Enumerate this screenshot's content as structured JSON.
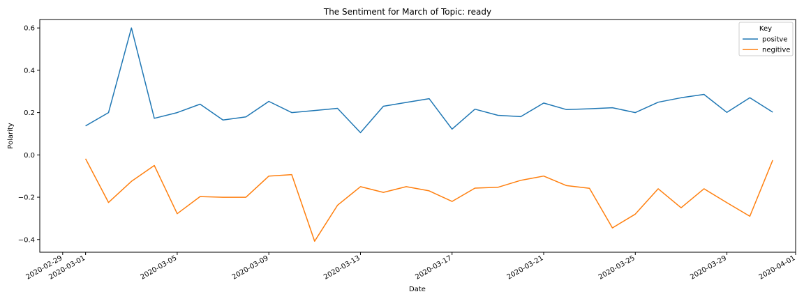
{
  "chart_data": {
    "type": "line",
    "title": "The Sentiment for March of Topic: ready",
    "xlabel": "Date",
    "ylabel": "Polarity",
    "x": [
      "2020-03-01",
      "2020-03-02",
      "2020-03-03",
      "2020-03-04",
      "2020-03-05",
      "2020-03-06",
      "2020-03-07",
      "2020-03-08",
      "2020-03-09",
      "2020-03-10",
      "2020-03-11",
      "2020-03-12",
      "2020-03-13",
      "2020-03-14",
      "2020-03-15",
      "2020-03-16",
      "2020-03-17",
      "2020-03-18",
      "2020-03-19",
      "2020-03-20",
      "2020-03-21",
      "2020-03-22",
      "2020-03-23",
      "2020-03-24",
      "2020-03-25",
      "2020-03-26",
      "2020-03-27",
      "2020-03-28",
      "2020-03-29",
      "2020-03-30",
      "2020-03-31"
    ],
    "xlim": [
      "2020-02-28",
      "2020-04-01"
    ],
    "xticks": [
      "2020-02-29",
      "2020-03-01",
      "2020-03-05",
      "2020-03-09",
      "2020-03-13",
      "2020-03-17",
      "2020-03-21",
      "2020-03-25",
      "2020-03-29",
      "2020-04-01"
    ],
    "ylim": [
      -0.46,
      0.64
    ],
    "yticks": [
      -0.4,
      -0.2,
      0.0,
      0.2,
      0.4,
      0.6
    ],
    "ytick_labels": [
      "−0.4",
      "−0.2",
      "0.0",
      "0.2",
      "0.4",
      "0.6"
    ],
    "grid": false,
    "legend": {
      "title": "Key",
      "position": "top-right"
    },
    "series": [
      {
        "name": "positve",
        "color": "#1f77b4",
        "values": [
          0.137,
          0.2,
          0.6,
          0.173,
          0.2,
          0.24,
          0.165,
          0.18,
          0.253,
          0.2,
          0.21,
          0.22,
          0.105,
          0.23,
          0.248,
          0.266,
          0.122,
          0.216,
          0.187,
          0.181,
          0.245,
          0.214,
          0.218,
          0.223,
          0.2,
          0.249,
          0.27,
          0.286,
          0.201,
          0.27,
          0.202
        ]
      },
      {
        "name": "negitive",
        "color": "#ff7f0e",
        "values": [
          -0.018,
          -0.225,
          -0.125,
          -0.05,
          -0.278,
          -0.197,
          -0.2,
          -0.2,
          -0.1,
          -0.093,
          -0.408,
          -0.238,
          -0.15,
          -0.177,
          -0.15,
          -0.17,
          -0.22,
          -0.157,
          -0.153,
          -0.12,
          -0.1,
          -0.145,
          -0.158,
          -0.345,
          -0.28,
          -0.16,
          -0.25,
          -0.16,
          -0.226,
          -0.29,
          -0.025
        ]
      }
    ]
  }
}
